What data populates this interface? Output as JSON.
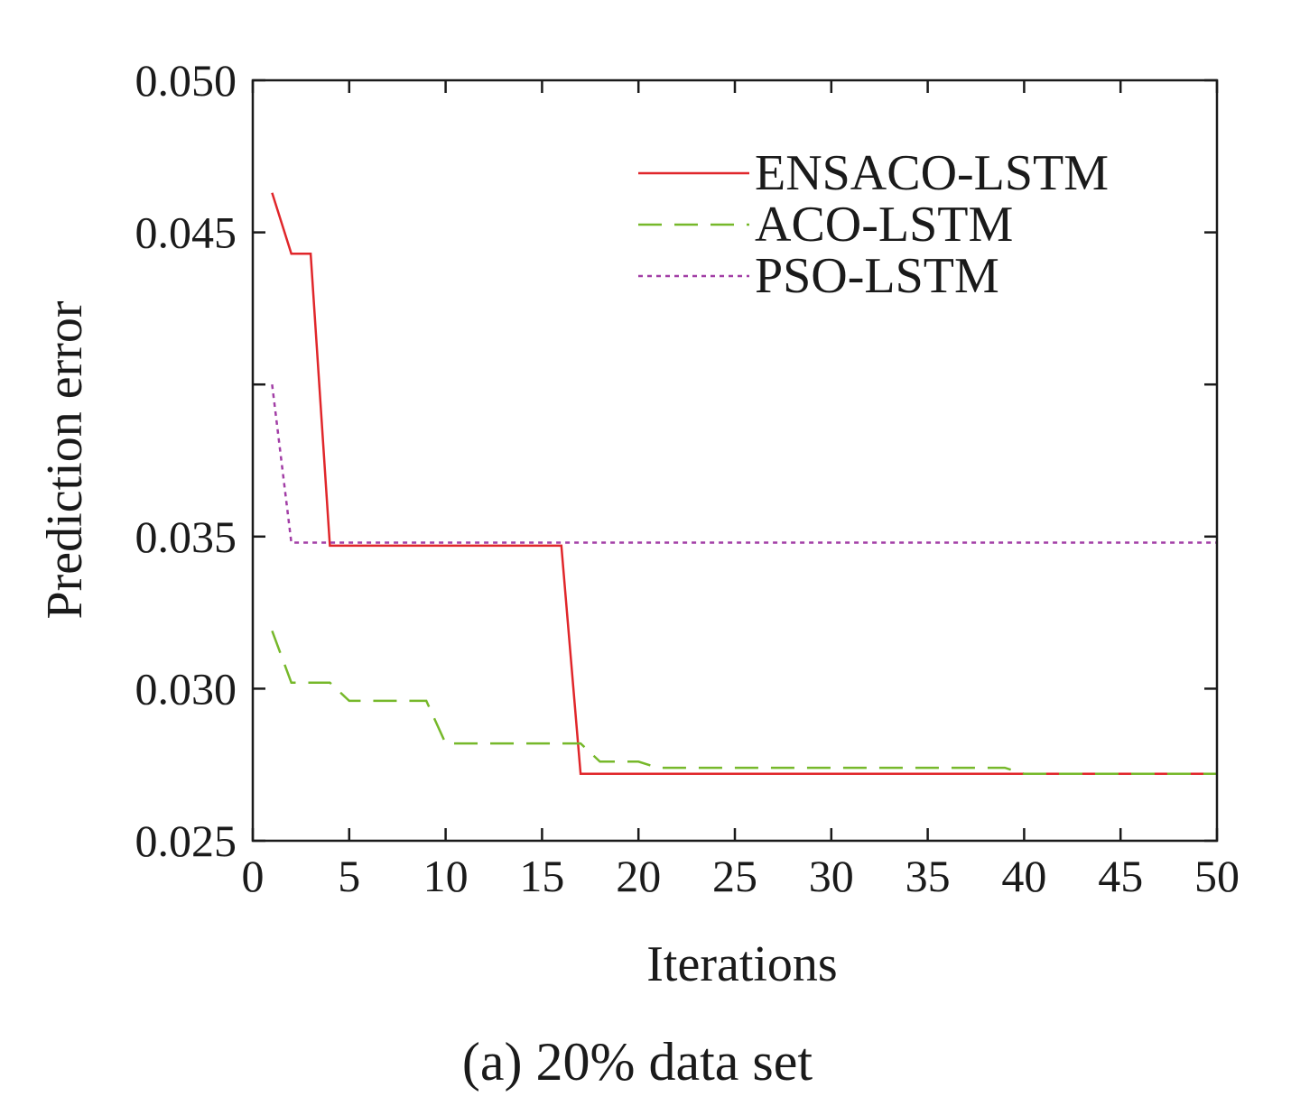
{
  "chart_data": {
    "type": "line",
    "caption": "(a) 20% data set",
    "xlabel": "Iterations",
    "ylabel": "Prediction error",
    "xlim": [
      0,
      50
    ],
    "ylim": [
      0.025,
      0.05
    ],
    "x_ticks": [
      0,
      5,
      10,
      15,
      20,
      25,
      30,
      35,
      40,
      45,
      50
    ],
    "x_tick_labels": [
      "0",
      "5",
      "10",
      "15",
      "20",
      "25",
      "30",
      "35",
      "40",
      "45",
      "50"
    ],
    "y_ticks": [
      0.025,
      0.03,
      0.035,
      0.04,
      0.045,
      0.05
    ],
    "y_tick_labels": [
      "0.025",
      "0.030",
      "0.035",
      "",
      "0.045",
      "0.050"
    ],
    "grid": false,
    "legend_position": "top-right",
    "series": [
      {
        "name": "ENSACO-LSTM",
        "color": "#e0262a",
        "dash": "solid",
        "points": [
          [
            1,
            0.0463
          ],
          [
            2,
            0.0443
          ],
          [
            3,
            0.0443
          ],
          [
            4,
            0.0347
          ],
          [
            16,
            0.0347
          ],
          [
            17,
            0.0272
          ],
          [
            50,
            0.0272
          ]
        ]
      },
      {
        "name": "ACO-LSTM",
        "color": "#76b82a",
        "dash": "dashed",
        "points": [
          [
            1,
            0.0319
          ],
          [
            2,
            0.0302
          ],
          [
            3,
            0.0302
          ],
          [
            4,
            0.0302
          ],
          [
            5,
            0.0296
          ],
          [
            9,
            0.0296
          ],
          [
            10,
            0.0282
          ],
          [
            16,
            0.0282
          ],
          [
            17,
            0.0282
          ],
          [
            18,
            0.0276
          ],
          [
            20,
            0.0276
          ],
          [
            21,
            0.0274
          ],
          [
            39,
            0.0274
          ],
          [
            40,
            0.0272
          ],
          [
            50,
            0.0272
          ]
        ]
      },
      {
        "name": "PSO-LSTM",
        "color": "#a23ea6",
        "dash": "dotted",
        "points": [
          [
            1,
            0.04
          ],
          [
            2,
            0.0348
          ],
          [
            50,
            0.0348
          ]
        ]
      }
    ]
  }
}
